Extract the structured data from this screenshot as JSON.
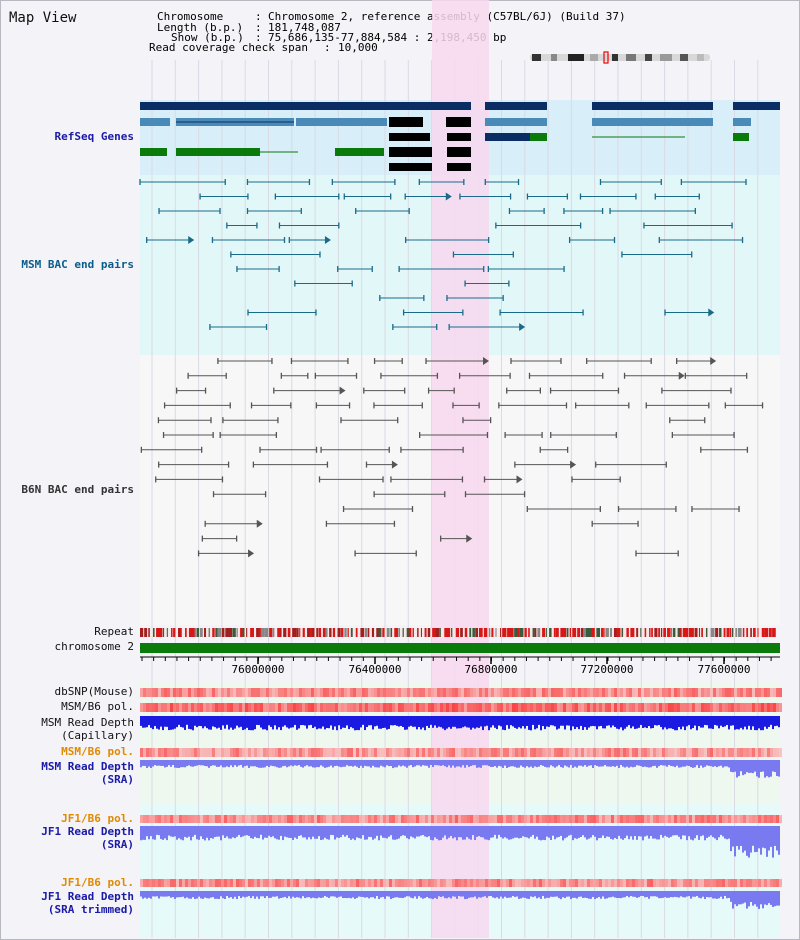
{
  "title": "Map View",
  "header": {
    "chromosome_key": "Chromosome",
    "chromosome_val": "Chromosome 2, reference assembly (C57BL/6J) (Build 37)",
    "length_key": "Length (b.p.)",
    "length_val": "181,748,087",
    "show_key": "Show (b.p.)",
    "show_val": "75,686,135-77,884,584 : 2,198,450 bp",
    "coverage_key": "Read coverage check span",
    "coverage_val": "10,000"
  },
  "tracks": {
    "refseq": "RefSeq Genes",
    "msm_bac": "MSM BAC end pairs",
    "b6n_bac": "B6N BAC end pairs",
    "repeat": "Repeat",
    "chromosome": "chromosome 2",
    "dbsnp": "dbSNP(Mouse)",
    "msm_pol1": "MSM/B6 pol.",
    "msm_depth_cap_1": "MSM Read Depth",
    "msm_depth_cap_2": "(Capillary)",
    "msm_pol2": "MSM/B6 pol.",
    "msm_depth_sra_1": "MSM Read Depth",
    "msm_depth_sra_2": "(SRA)",
    "jf1_pol1": "JF1/B6 pol.",
    "jf1_depth_1": "JF1 Read Depth",
    "jf1_depth_2": "(SRA)",
    "jf1_pol2": "JF1/B6 pol.",
    "jf1_trim_1": "JF1 Read Depth",
    "jf1_trim_2": "(SRA trimmed)"
  },
  "axis": {
    "ticks": [
      "76000000",
      "76400000",
      "76800000",
      "77200000",
      "77600000"
    ]
  },
  "colors": {
    "refseq_bg": "#d8eef8",
    "msm_bg": "#e2f8f8",
    "highlight": "#f8d8f0",
    "gene_dark": "#0a2d64",
    "gene_mid": "#4a8ab8",
    "gene_green": "#0a7a0a",
    "chrom_green": "#0a7a0a",
    "depth_blue": "#1a1ae0",
    "depth_light": "#7a7af0"
  }
}
